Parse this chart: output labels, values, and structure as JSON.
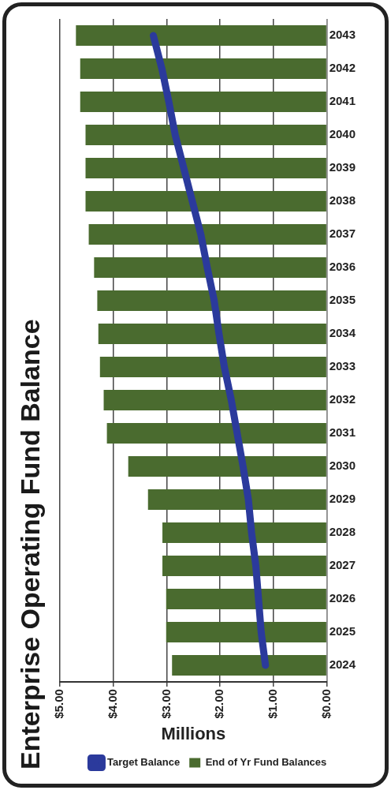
{
  "chart_data": {
    "type": "bar",
    "orientation": "horizontal",
    "title": "Enterprise Operating Fund Balance",
    "xlabel": "Millions",
    "categories": [
      "2043",
      "2042",
      "2041",
      "2040",
      "2039",
      "2038",
      "2037",
      "2036",
      "2035",
      "2034",
      "2033",
      "2032",
      "2031",
      "2030",
      "2029",
      "2028",
      "2027",
      "2026",
      "2025",
      "2024"
    ],
    "series": [
      {
        "name": "End of Yr Fund Balances",
        "color": "#4a6b2f",
        "values": [
          4.7,
          4.62,
          4.62,
          4.52,
          4.52,
          4.52,
          4.46,
          4.36,
          4.3,
          4.28,
          4.25,
          4.18,
          4.12,
          3.72,
          3.35,
          3.08,
          3.08,
          3.01,
          3.01,
          2.9
        ]
      },
      {
        "name": "Target Balance",
        "type": "line",
        "color": "#2b3a9c",
        "values": [
          3.25,
          3.09,
          2.96,
          2.84,
          2.68,
          2.52,
          2.36,
          2.24,
          2.11,
          2.02,
          1.92,
          1.79,
          1.68,
          1.57,
          1.47,
          1.41,
          1.33,
          1.28,
          1.23,
          1.15
        ]
      }
    ],
    "xlim": [
      5,
      0
    ],
    "xticks": [
      {
        "value": 5,
        "label": "$5.00"
      },
      {
        "value": 4,
        "label": "$4.00"
      },
      {
        "value": 3,
        "label": "$3.00"
      },
      {
        "value": 2,
        "label": "$2.00"
      },
      {
        "value": 1,
        "label": "$1.00"
      },
      {
        "value": 0,
        "label": "$0.00"
      }
    ],
    "grid": "x",
    "legend": "bottom"
  }
}
